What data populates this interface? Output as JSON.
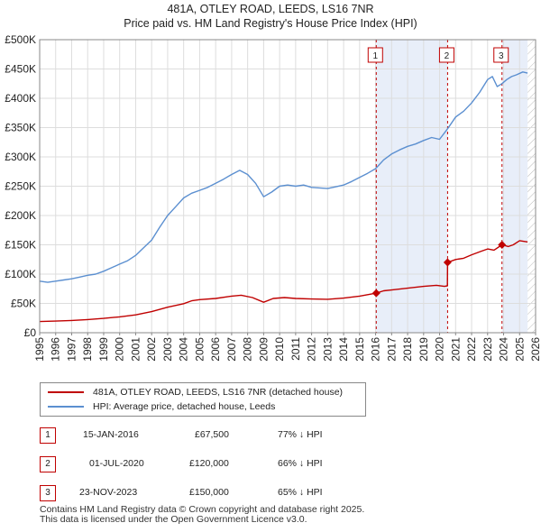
{
  "title_line1": "481A, OTLEY ROAD, LEEDS, LS16 7NR",
  "title_line2": "Price paid vs. HM Land Registry's House Price Index (HPI)",
  "chart_data": {
    "type": "line",
    "xlim": [
      1995,
      2026
    ],
    "ylim": [
      0,
      500000
    ],
    "x_ticks": [
      "1995",
      "1996",
      "1997",
      "1998",
      "1999",
      "2000",
      "2001",
      "2002",
      "2003",
      "2004",
      "2005",
      "2006",
      "2007",
      "2008",
      "2009",
      "2010",
      "2011",
      "2012",
      "2013",
      "2014",
      "2015",
      "2016",
      "2017",
      "2018",
      "2019",
      "2020",
      "2021",
      "2022",
      "2023",
      "2024",
      "2025",
      "2026"
    ],
    "y_ticks": [
      {
        "value": 0,
        "label": "£0"
      },
      {
        "value": 50000,
        "label": "£50K"
      },
      {
        "value": 100000,
        "label": "£100K"
      },
      {
        "value": 150000,
        "label": "£150K"
      },
      {
        "value": 200000,
        "label": "£200K"
      },
      {
        "value": 250000,
        "label": "£250K"
      },
      {
        "value": 300000,
        "label": "£300K"
      },
      {
        "value": 350000,
        "label": "£350K"
      },
      {
        "value": 400000,
        "label": "£400K"
      },
      {
        "value": 450000,
        "label": "£450K"
      },
      {
        "value": 500000,
        "label": "£500K"
      }
    ],
    "series": [
      {
        "name": "481A, OTLEY ROAD, LEEDS, LS16 7NR (detached house)",
        "color": "#c00000",
        "points": [
          [
            1995.0,
            19000
          ],
          [
            1996.0,
            19800
          ],
          [
            1997.0,
            21000
          ],
          [
            1998.0,
            22500
          ],
          [
            1999.0,
            24500
          ],
          [
            2000.0,
            27000
          ],
          [
            2001.0,
            30500
          ],
          [
            2002.0,
            36000
          ],
          [
            2003.0,
            43500
          ],
          [
            2004.0,
            49500
          ],
          [
            2004.5,
            54500
          ],
          [
            2005.0,
            56500
          ],
          [
            2006.0,
            58500
          ],
          [
            2007.0,
            62500
          ],
          [
            2007.6,
            64000
          ],
          [
            2008.3,
            60000
          ],
          [
            2009.0,
            52000
          ],
          [
            2009.6,
            58500
          ],
          [
            2010.3,
            60000
          ],
          [
            2011.0,
            58500
          ],
          [
            2012.0,
            57500
          ],
          [
            2013.0,
            57000
          ],
          [
            2014.0,
            59000
          ],
          [
            2015.0,
            62500
          ],
          [
            2016.04,
            67500
          ],
          [
            2016.5,
            71500
          ],
          [
            2017.0,
            73000
          ],
          [
            2018.0,
            76000
          ],
          [
            2019.0,
            79000
          ],
          [
            2019.8,
            81000
          ],
          [
            2020.3,
            79000
          ],
          [
            2020.49,
            80000
          ],
          [
            2020.5,
            120000
          ],
          [
            2021.0,
            125000
          ],
          [
            2021.5,
            127000
          ],
          [
            2022.0,
            133000
          ],
          [
            2022.6,
            139000
          ],
          [
            2023.0,
            143000
          ],
          [
            2023.4,
            141000
          ],
          [
            2023.9,
            150000
          ],
          [
            2024.3,
            147000
          ],
          [
            2024.6,
            150000
          ],
          [
            2025.0,
            157000
          ],
          [
            2025.5,
            155000
          ]
        ]
      },
      {
        "name": "HPI: Average price, detached house, Leeds",
        "color": "#5b8fd0",
        "points": [
          [
            1995.0,
            88000
          ],
          [
            1995.5,
            86000
          ],
          [
            1996.0,
            88000
          ],
          [
            1996.5,
            90000
          ],
          [
            1997.0,
            92000
          ],
          [
            1997.5,
            95000
          ],
          [
            1998.0,
            98000
          ],
          [
            1998.5,
            100000
          ],
          [
            1999.0,
            105000
          ],
          [
            1999.5,
            111000
          ],
          [
            2000.0,
            117000
          ],
          [
            2000.5,
            123000
          ],
          [
            2001.0,
            132000
          ],
          [
            2001.5,
            145000
          ],
          [
            2002.0,
            158000
          ],
          [
            2002.5,
            180000
          ],
          [
            2003.0,
            200000
          ],
          [
            2003.5,
            215000
          ],
          [
            2004.0,
            230000
          ],
          [
            2004.5,
            238000
          ],
          [
            2005.0,
            243000
          ],
          [
            2005.5,
            248000
          ],
          [
            2006.0,
            255000
          ],
          [
            2006.5,
            262000
          ],
          [
            2007.0,
            270000
          ],
          [
            2007.5,
            277000
          ],
          [
            2008.0,
            270000
          ],
          [
            2008.5,
            255000
          ],
          [
            2009.0,
            232000
          ],
          [
            2009.5,
            240000
          ],
          [
            2010.0,
            250000
          ],
          [
            2010.5,
            252000
          ],
          [
            2011.0,
            250000
          ],
          [
            2011.5,
            252000
          ],
          [
            2012.0,
            248000
          ],
          [
            2012.5,
            247000
          ],
          [
            2013.0,
            246000
          ],
          [
            2013.5,
            249000
          ],
          [
            2014.0,
            252000
          ],
          [
            2014.5,
            258000
          ],
          [
            2015.0,
            265000
          ],
          [
            2015.5,
            272000
          ],
          [
            2016.0,
            280000
          ],
          [
            2016.5,
            295000
          ],
          [
            2017.0,
            305000
          ],
          [
            2017.5,
            312000
          ],
          [
            2018.0,
            318000
          ],
          [
            2018.5,
            322000
          ],
          [
            2019.0,
            328000
          ],
          [
            2019.5,
            333000
          ],
          [
            2020.0,
            330000
          ],
          [
            2020.5,
            348000
          ],
          [
            2021.0,
            368000
          ],
          [
            2021.5,
            378000
          ],
          [
            2022.0,
            392000
          ],
          [
            2022.5,
            410000
          ],
          [
            2023.0,
            432000
          ],
          [
            2023.3,
            437000
          ],
          [
            2023.6,
            420000
          ],
          [
            2023.9,
            425000
          ],
          [
            2024.2,
            432000
          ],
          [
            2024.5,
            437000
          ],
          [
            2024.8,
            440000
          ],
          [
            2025.2,
            445000
          ],
          [
            2025.5,
            443000
          ]
        ]
      }
    ],
    "annotations": [
      {
        "label": "1",
        "x": 2016.04,
        "y": 67500,
        "shade_to": 2020.5
      },
      {
        "label": "2",
        "x": 2020.5,
        "y": 120000,
        "shade_to": 2020.5
      },
      {
        "label": "3",
        "x": 2023.9,
        "y": 150000,
        "shade_to": 2025.5
      }
    ],
    "hatch_from": 2025.5
  },
  "legend": {
    "property_label": "481A, OTLEY ROAD, LEEDS, LS16 7NR (detached house)",
    "property_color": "#c00000",
    "hpi_label": "HPI: Average price, detached house, Leeds",
    "hpi_color": "#5b8fd0"
  },
  "sales": [
    {
      "num": "1",
      "date": "15-JAN-2016",
      "price": "£67,500",
      "hpi": "77% ↓ HPI"
    },
    {
      "num": "2",
      "date": "01-JUL-2020",
      "price": "£120,000",
      "hpi": "66% ↓ HPI"
    },
    {
      "num": "3",
      "date": "23-NOV-2023",
      "price": "£150,000",
      "hpi": "65% ↓ HPI"
    }
  ],
  "footer_line1": "Contains HM Land Registry data © Crown copyright and database right 2025.",
  "footer_line2": "This data is licensed under the Open Government Licence v3.0."
}
